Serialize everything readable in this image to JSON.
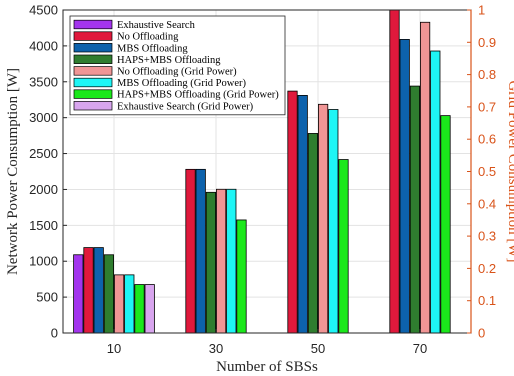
{
  "chart_data": {
    "type": "bar",
    "categories": [
      "10",
      "30",
      "50",
      "70"
    ],
    "xlabel": "Number of SBSs",
    "ylabel": "Network Power Consumption [W]",
    "ylabel_right": "Grid Power Consumption [W]",
    "ylim": [
      0,
      4500
    ],
    "ylim_right": [
      0,
      1
    ],
    "yticks": [
      "0",
      "500",
      "1000",
      "1500",
      "2000",
      "2500",
      "3000",
      "3500",
      "4000",
      "4500"
    ],
    "yticks_right": [
      "0",
      "0.1",
      "0.2",
      "0.3",
      "0.4",
      "0.5",
      "0.6",
      "0.7",
      "0.8",
      "0.9",
      "1"
    ],
    "grid": true,
    "legend_position": "top-left",
    "series": [
      {
        "name": "Exhaustive Search",
        "axis": "left",
        "color": "#A335EE",
        "values": [
          1090,
          null,
          null,
          null
        ]
      },
      {
        "name": "No Offloading",
        "axis": "left",
        "color": "#E0193C",
        "values": [
          1190,
          2280,
          3370,
          4500
        ]
      },
      {
        "name": "MBS Offloading",
        "axis": "left",
        "color": "#0D62AC",
        "values": [
          1190,
          2280,
          3310,
          4090
        ]
      },
      {
        "name": "HAPS+MBS Offloading",
        "axis": "left",
        "color": "#2F7D2F",
        "values": [
          1090,
          1960,
          2780,
          3440
        ]
      },
      {
        "name": "No Offloading (Grid Power)",
        "axis": "right",
        "color": "#F09595",
        "values": [
          0.18,
          0.445,
          0.708,
          0.962
        ]
      },
      {
        "name": "MBS Offloading (Grid Power)",
        "axis": "right",
        "color": "#1EF5F5",
        "values": [
          0.18,
          0.445,
          0.692,
          0.873
        ]
      },
      {
        "name": "HAPS+MBS Offloading (Grid Power)",
        "axis": "right",
        "color": "#1BE81B",
        "values": [
          0.15,
          0.35,
          0.537,
          0.673
        ]
      },
      {
        "name": "Exhaustive Search (Grid Power)",
        "axis": "right",
        "color": "#D8A5EE",
        "values": [
          0.15,
          null,
          null,
          null
        ]
      }
    ]
  }
}
